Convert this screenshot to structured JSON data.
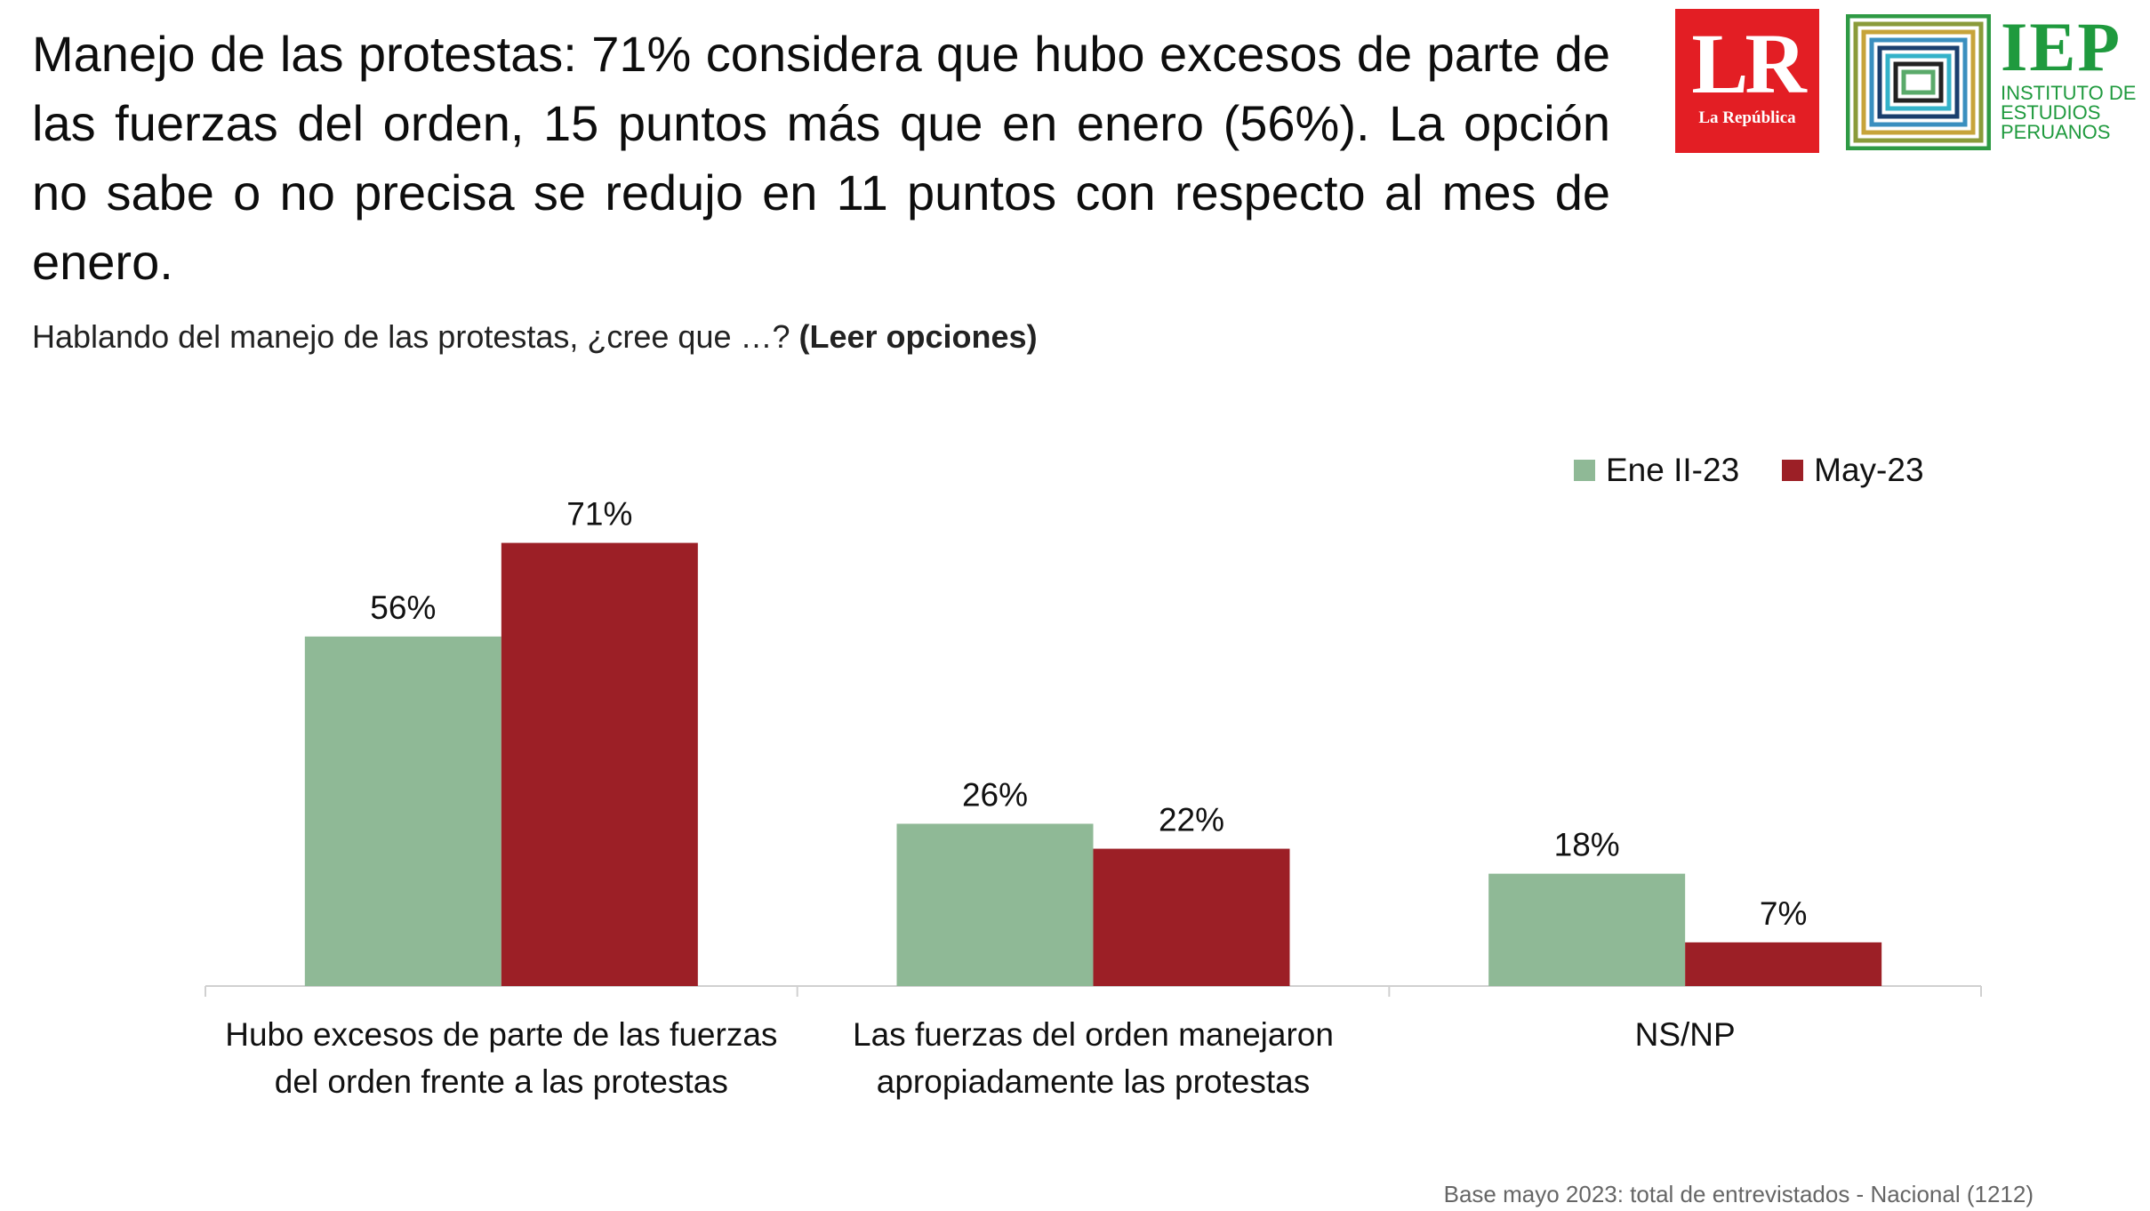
{
  "headline": "Manejo de las protestas: 71% considera que hubo excesos de parte de las fuerzas del orden, 15 puntos más que en enero (56%). La opción no sabe o no precisa se redujo en 11 puntos con respecto al mes de enero.",
  "subtitle": {
    "question": "Hablando del manejo de las protestas, ¿cree que …? ",
    "instruction": "(Leer opciones)"
  },
  "logos": {
    "lr": {
      "mark": "LR",
      "name": "La República"
    },
    "iep": {
      "acronym": "IEP",
      "line1": "INSTITUTO DE",
      "line2": "ESTUDIOS",
      "line3": "PERUANOS"
    }
  },
  "footer": "Base mayo 2023: total de entrevistados - Nacional (1212)",
  "colors": {
    "ene": "#8fb996",
    "may": "#9c1f26",
    "axis": "#d0d0d0",
    "text": "#111111"
  },
  "chart_data": {
    "type": "bar",
    "title": "",
    "xlabel": "",
    "ylabel": "",
    "ylim": [
      0,
      80
    ],
    "grid": false,
    "legend_position": "top-right",
    "categories": [
      "Hubo excesos de parte de las fuerzas|del orden frente a las protestas",
      "Las fuerzas del orden manejaron|apropiadamente las protestas",
      "NS/NP"
    ],
    "series": [
      {
        "name": "Ene II-23",
        "values": [
          56,
          26,
          18
        ],
        "labels": [
          "56%",
          "26%",
          "18%"
        ]
      },
      {
        "name": "May-23",
        "values": [
          71,
          22,
          7
        ],
        "labels": [
          "71%",
          "22%",
          "7%"
        ]
      }
    ]
  }
}
